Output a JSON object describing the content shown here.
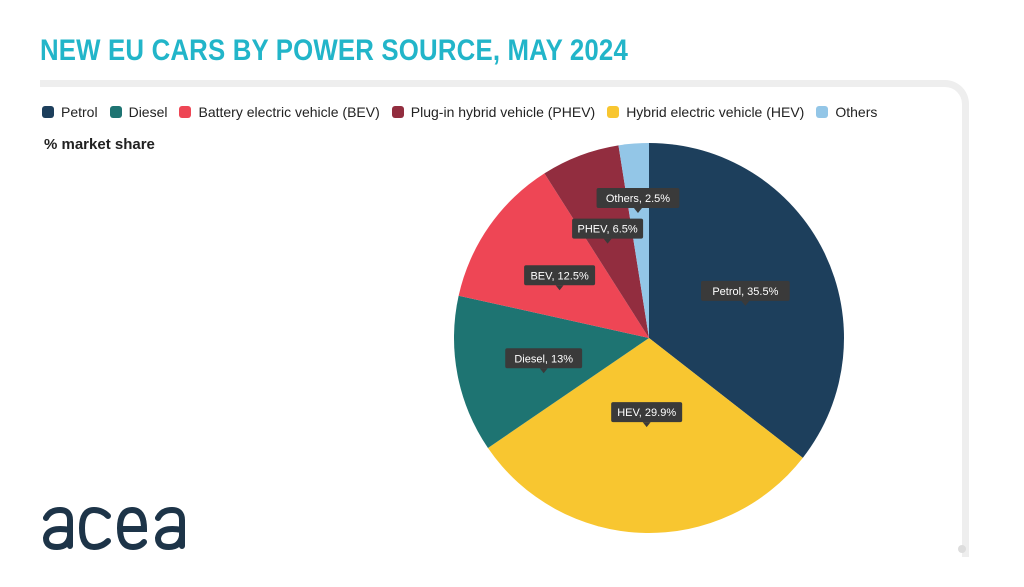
{
  "header": {
    "title": "NEW EU CARS BY POWER SOURCE, MAY 2024"
  },
  "unit_label": "% market share",
  "logo": {
    "text": "acea",
    "color": "#1d3448",
    "accent": "#22b5c9"
  },
  "chart_data": {
    "type": "pie",
    "title": "NEW EU CARS BY POWER SOURCE, MAY 2024",
    "unit": "% market share",
    "legend_position": "top-left",
    "slices": [
      {
        "legend": "Petrol",
        "label": "Petrol, 35.5%",
        "value": 35.5,
        "color": "#1d3f5c"
      },
      {
        "legend": "Hybrid electric vehicle (HEV)",
        "label": "HEV, 29.9%",
        "value": 29.9,
        "color": "#f8c630"
      },
      {
        "legend": "Diesel",
        "label": "Diesel, 13%",
        "value": 13,
        "color": "#1e7472"
      },
      {
        "legend": "Battery electric vehicle (BEV)",
        "label": "BEV, 12.5%",
        "value": 12.5,
        "color": "#ee4655"
      },
      {
        "legend": "Plug-in hybrid vehicle (PHEV)",
        "label": "PHEV, 6.5%",
        "value": 6.5,
        "color": "#922d3f"
      },
      {
        "legend": "Others",
        "label": "Others, 2.5%",
        "value": 2.5,
        "color": "#93c6e7"
      }
    ],
    "legend_order": [
      "Petrol",
      "Diesel",
      "Battery electric vehicle (BEV)",
      "Plug-in hybrid vehicle (PHEV)",
      "Hybrid electric vehicle (HEV)",
      "Others"
    ]
  }
}
